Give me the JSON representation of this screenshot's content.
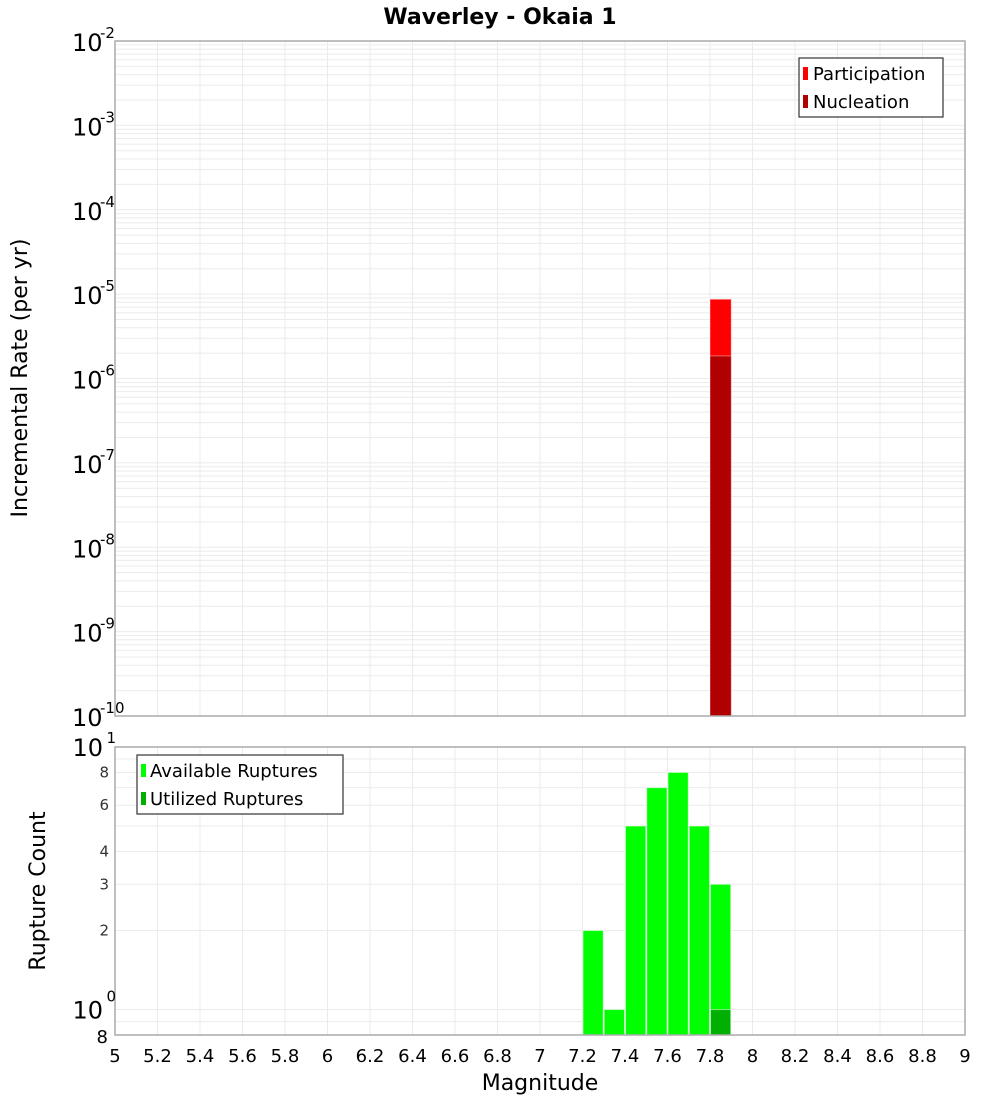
{
  "chart_data": [
    {
      "type": "bar",
      "title": "Waverley - Okaia 1",
      "xlabel": "Magnitude",
      "ylabel": "Incremental Rate (per yr)",
      "yscale": "log",
      "ylim": [
        1e-10,
        0.01
      ],
      "xlim": [
        5,
        9
      ],
      "grid": true,
      "legend_position": "upper right",
      "y_ticks": [
        "10^-2",
        "10^-3",
        "10^-4",
        "10^-5",
        "10^-6",
        "10^-7",
        "10^-8",
        "10^-9",
        "10^-10"
      ],
      "series": [
        {
          "name": "Participation",
          "color": "#ff0000",
          "x": [
            7.85
          ],
          "values": [
            8.7e-06
          ]
        },
        {
          "name": "Nucleation",
          "color": "#b00000",
          "x": [
            7.85
          ],
          "values": [
            1.85e-06
          ]
        }
      ]
    },
    {
      "type": "bar",
      "title": "",
      "xlabel": "Magnitude",
      "ylabel": "Rupture Count",
      "yscale": "log",
      "ylim": [
        0.8,
        10
      ],
      "xlim": [
        5,
        9
      ],
      "grid": true,
      "legend_position": "upper left",
      "x_ticks": [
        "5",
        "5.2",
        "5.4",
        "5.6",
        "5.8",
        "6",
        "6.2",
        "6.4",
        "6.6",
        "6.8",
        "7",
        "7.2",
        "7.4",
        "7.6",
        "7.8",
        "8",
        "8.2",
        "8.4",
        "8.6",
        "8.8",
        "9"
      ],
      "y_ticks": [
        "8",
        "10^0",
        "2",
        "3",
        "4",
        "6",
        "8",
        "10^1"
      ],
      "series": [
        {
          "name": "Available Ruptures",
          "color": "#00ff00",
          "x": [
            7.25,
            7.35,
            7.45,
            7.55,
            7.65,
            7.75,
            7.85
          ],
          "values": [
            2,
            1,
            5,
            7,
            8,
            5,
            3
          ]
        },
        {
          "name": "Utilized Ruptures",
          "color": "#00b000",
          "x": [
            7.85
          ],
          "values": [
            1
          ]
        }
      ]
    }
  ],
  "header": {
    "title": "Waverley - Okaia 1"
  },
  "top_plot": {
    "ylabel": "Incremental Rate (per yr)",
    "legend": [
      {
        "label": "Participation",
        "color": "#ff0000"
      },
      {
        "label": "Nucleation",
        "color": "#b00000"
      }
    ],
    "ytick_exponents": [
      "-2",
      "-3",
      "-4",
      "-5",
      "-6",
      "-7",
      "-8",
      "-9",
      "-10"
    ]
  },
  "bottom_plot": {
    "ylabel": "Rupture Count",
    "legend": [
      {
        "label": "Available Ruptures",
        "color": "#00ff00"
      },
      {
        "label": "Utilized Ruptures",
        "color": "#00b000"
      }
    ],
    "xlabel": "Magnitude"
  }
}
